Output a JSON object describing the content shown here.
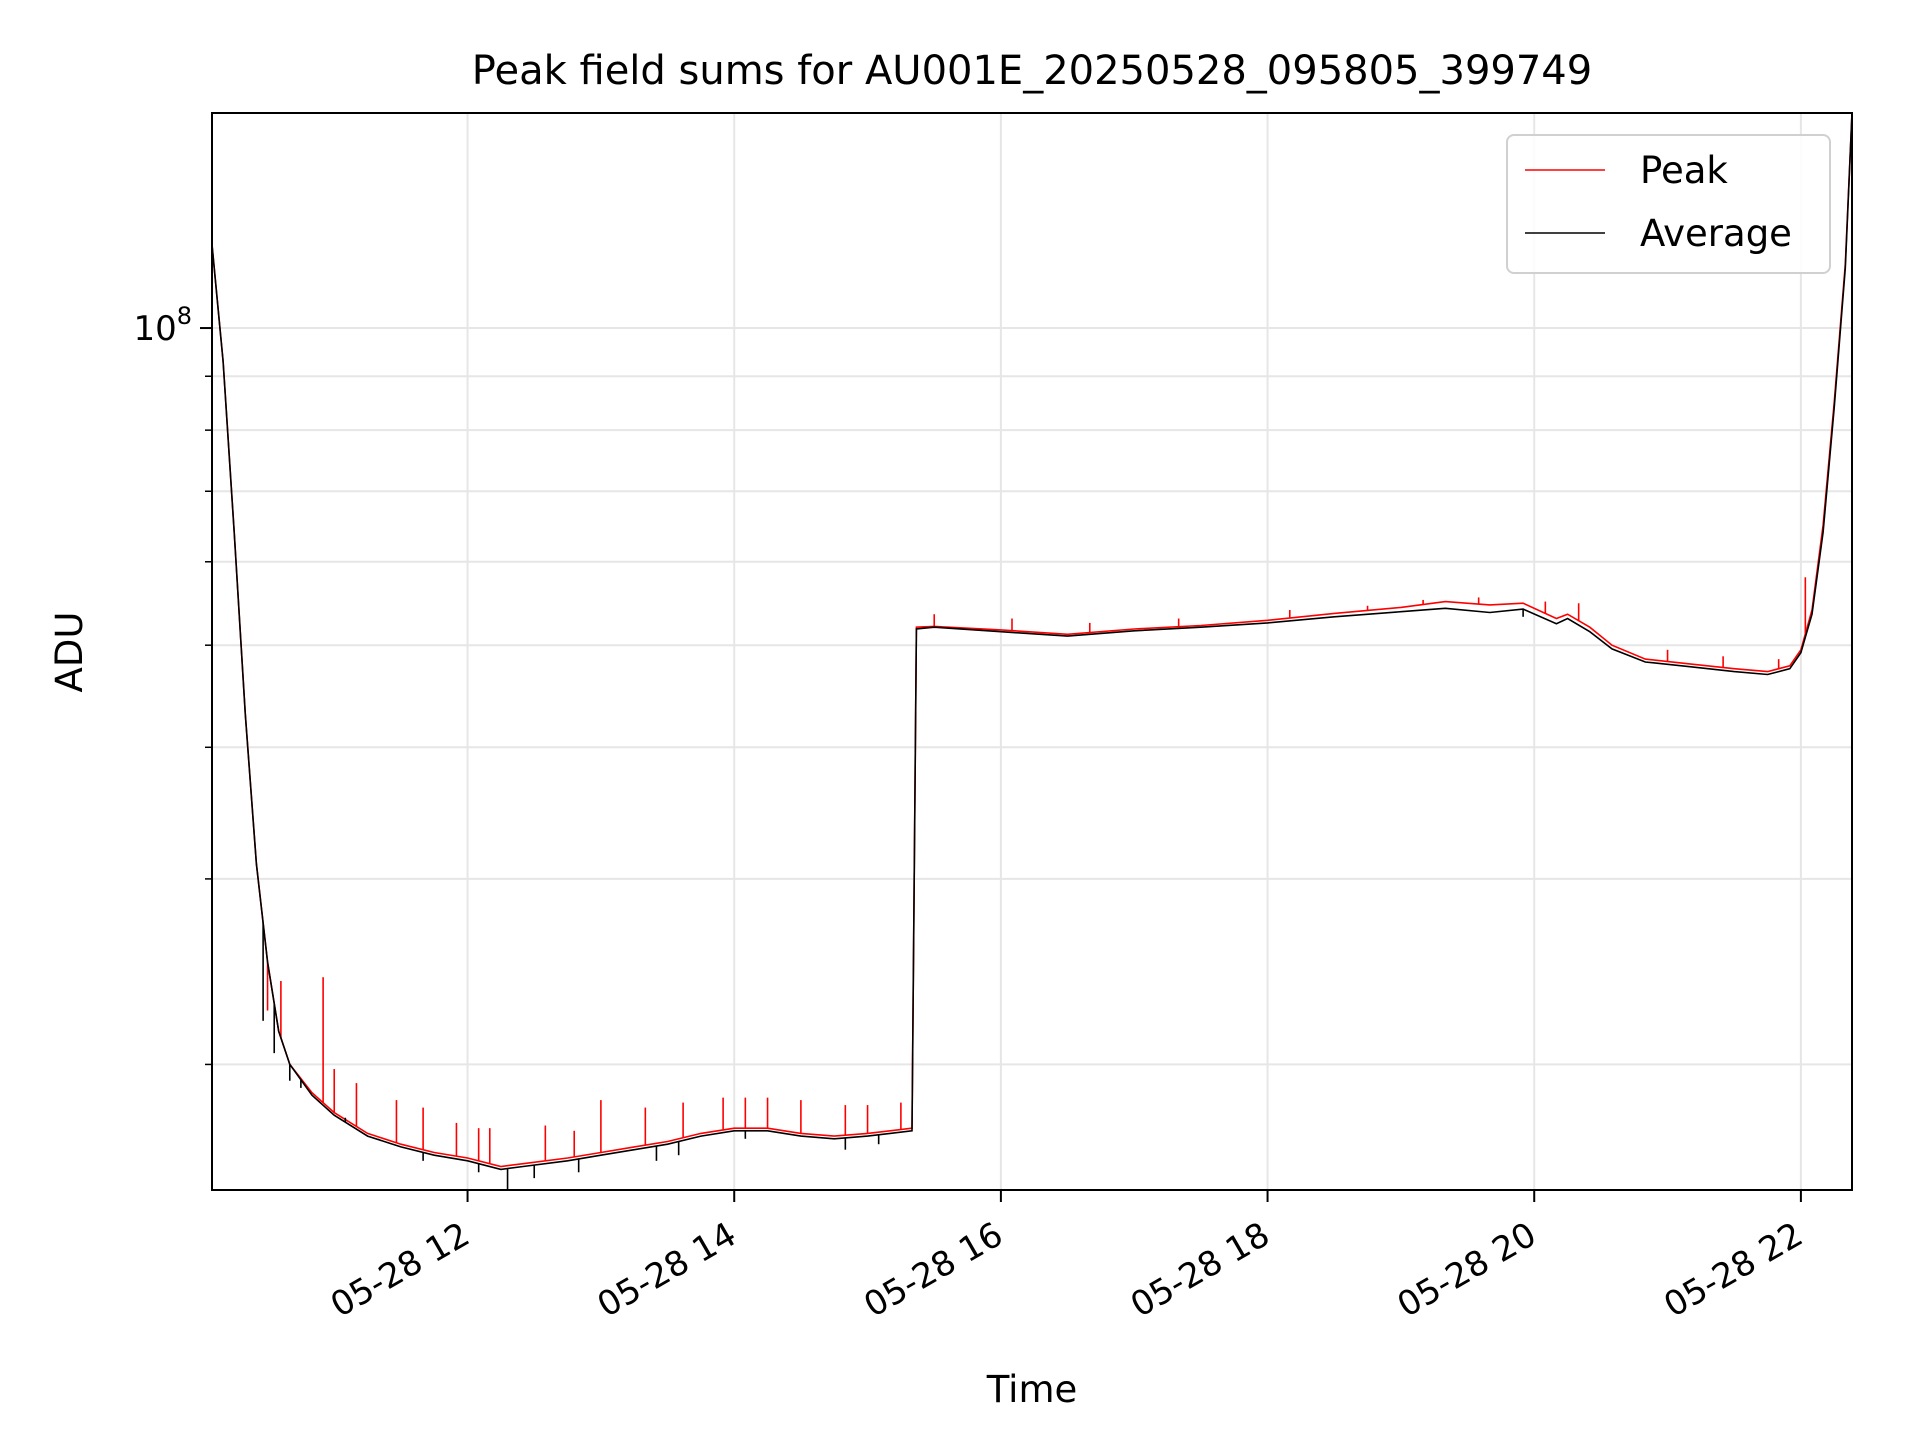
{
  "chart_data": {
    "type": "line",
    "title": "Peak field sums for AU001E_20250528_095805_399749",
    "xlabel": "Time",
    "ylabel": "ADU",
    "y_scale": "log",
    "grid": true,
    "legend_position": "top-right",
    "x_range": [
      "2025-05-28 10:05",
      "2025-05-28 22:23"
    ],
    "y_range": [
      15200000.0,
      160000000.0
    ],
    "x_ticks": [
      {
        "t": "2025-05-28 12:00",
        "label": "05-28 12"
      },
      {
        "t": "2025-05-28 14:00",
        "label": "05-28 14"
      },
      {
        "t": "2025-05-28 16:00",
        "label": "05-28 16"
      },
      {
        "t": "2025-05-28 18:00",
        "label": "05-28 18"
      },
      {
        "t": "2025-05-28 20:00",
        "label": "05-28 20"
      },
      {
        "t": "2025-05-28 22:00",
        "label": "05-28 22"
      }
    ],
    "y_major_ticks": [
      {
        "value": 100000000.0,
        "base": "10",
        "exp": "8"
      }
    ],
    "y_minor_ticks": [
      20000000.0,
      30000000.0,
      40000000.0,
      50000000.0,
      60000000.0,
      70000000.0,
      80000000.0,
      90000000.0
    ],
    "series": [
      {
        "name": "Peak",
        "color": "#ff0000",
        "x": [
          "2025-05-28 10:05",
          "2025-05-28 10:10",
          "2025-05-28 10:15",
          "2025-05-28 10:20",
          "2025-05-28 10:25",
          "2025-05-28 10:30",
          "2025-05-28 10:35",
          "2025-05-28 10:40",
          "2025-05-28 10:50",
          "2025-05-28 11:00",
          "2025-05-28 11:15",
          "2025-05-28 11:30",
          "2025-05-28 11:45",
          "2025-05-28 12:00",
          "2025-05-28 12:15",
          "2025-05-28 12:25",
          "2025-05-28 12:45",
          "2025-05-28 13:00",
          "2025-05-28 13:15",
          "2025-05-28 13:30",
          "2025-05-28 13:45",
          "2025-05-28 14:00",
          "2025-05-28 14:15",
          "2025-05-28 14:30",
          "2025-05-28 14:45",
          "2025-05-28 15:00",
          "2025-05-28 15:20",
          "2025-05-28 15:22",
          "2025-05-28 15:30",
          "2025-05-28 16:00",
          "2025-05-28 16:30",
          "2025-05-28 17:00",
          "2025-05-28 17:30",
          "2025-05-28 18:00",
          "2025-05-28 18:30",
          "2025-05-28 19:00",
          "2025-05-28 19:20",
          "2025-05-28 19:40",
          "2025-05-28 19:55",
          "2025-05-28 20:10",
          "2025-05-28 20:15",
          "2025-05-28 20:25",
          "2025-05-28 20:35",
          "2025-05-28 20:50",
          "2025-05-28 21:10",
          "2025-05-28 21:30",
          "2025-05-28 21:45",
          "2025-05-28 21:55",
          "2025-05-28 22:00",
          "2025-05-28 22:05",
          "2025-05-28 22:10",
          "2025-05-28 22:15",
          "2025-05-28 22:20",
          "2025-05-28 22:23"
        ],
        "values": [
          120000000.0,
          93000000.0,
          64000000.0,
          43000000.0,
          31000000.0,
          25000000.0,
          21500000.0,
          20000000.0,
          18800000.0,
          18000000.0,
          17200000.0,
          16800000.0,
          16500000.0,
          16300000.0,
          16000000.0,
          16100000.0,
          16300000.0,
          16500000.0,
          16700000.0,
          16900000.0,
          17200000.0,
          17400000.0,
          17400000.0,
          17200000.0,
          17100000.0,
          17200000.0,
          17400000.0,
          52000000.0,
          52100000.0,
          51700000.0,
          51200000.0,
          51800000.0,
          52200000.0,
          52800000.0,
          53600000.0,
          54300000.0,
          55000000.0,
          54600000.0,
          54800000.0,
          53000000.0,
          53500000.0,
          52000000.0,
          50000000.0,
          48500000.0,
          48000000.0,
          47500000.0,
          47200000.0,
          47800000.0,
          49500000.0,
          54000000.0,
          65000000.0,
          85000000.0,
          115000000.0,
          160000000.0
        ],
        "spikes": [
          {
            "t": "2025-05-28 10:30",
            "v": 22500000.0
          },
          {
            "t": "2025-05-28 10:36",
            "v": 24000000.0
          },
          {
            "t": "2025-05-28 10:55",
            "v": 24200000.0
          },
          {
            "t": "2025-05-28 11:00",
            "v": 19800000.0
          },
          {
            "t": "2025-05-28 11:10",
            "v": 19200000.0
          },
          {
            "t": "2025-05-28 11:28",
            "v": 18500000.0
          },
          {
            "t": "2025-05-28 11:40",
            "v": 18200000.0
          },
          {
            "t": "2025-05-28 11:55",
            "v": 17600000.0
          },
          {
            "t": "2025-05-28 12:05",
            "v": 17400000.0
          },
          {
            "t": "2025-05-28 12:10",
            "v": 17400000.0
          },
          {
            "t": "2025-05-28 12:35",
            "v": 17500000.0
          },
          {
            "t": "2025-05-28 12:48",
            "v": 17300000.0
          },
          {
            "t": "2025-05-28 13:00",
            "v": 18500000.0
          },
          {
            "t": "2025-05-28 13:20",
            "v": 18200000.0
          },
          {
            "t": "2025-05-28 13:37",
            "v": 18400000.0
          },
          {
            "t": "2025-05-28 13:55",
            "v": 18600000.0
          },
          {
            "t": "2025-05-28 14:05",
            "v": 18600000.0
          },
          {
            "t": "2025-05-28 14:15",
            "v": 18600000.0
          },
          {
            "t": "2025-05-28 14:30",
            "v": 18500000.0
          },
          {
            "t": "2025-05-28 14:50",
            "v": 18300000.0
          },
          {
            "t": "2025-05-28 15:00",
            "v": 18300000.0
          },
          {
            "t": "2025-05-28 15:15",
            "v": 18400000.0
          },
          {
            "t": "2025-05-28 15:30",
            "v": 53500000.0
          },
          {
            "t": "2025-05-28 16:05",
            "v": 53000000.0
          },
          {
            "t": "2025-05-28 16:40",
            "v": 52500000.0
          },
          {
            "t": "2025-05-28 17:20",
            "v": 53000000.0
          },
          {
            "t": "2025-05-28 18:10",
            "v": 54000000.0
          },
          {
            "t": "2025-05-28 18:45",
            "v": 54500000.0
          },
          {
            "t": "2025-05-28 19:10",
            "v": 55200000.0
          },
          {
            "t": "2025-05-28 19:35",
            "v": 55500000.0
          },
          {
            "t": "2025-05-28 20:05",
            "v": 55000000.0
          },
          {
            "t": "2025-05-28 20:20",
            "v": 54800000.0
          },
          {
            "t": "2025-05-28 21:00",
            "v": 49500000.0
          },
          {
            "t": "2025-05-28 21:25",
            "v": 48800000.0
          },
          {
            "t": "2025-05-28 21:50",
            "v": 48500000.0
          },
          {
            "t": "2025-05-28 22:02",
            "v": 58000000.0
          }
        ]
      },
      {
        "name": "Average",
        "color": "#000000",
        "x": [
          "2025-05-28 10:05",
          "2025-05-28 10:10",
          "2025-05-28 10:15",
          "2025-05-28 10:20",
          "2025-05-28 10:25",
          "2025-05-28 10:30",
          "2025-05-28 10:35",
          "2025-05-28 10:40",
          "2025-05-28 10:50",
          "2025-05-28 11:00",
          "2025-05-28 11:15",
          "2025-05-28 11:30",
          "2025-05-28 11:45",
          "2025-05-28 12:00",
          "2025-05-28 12:15",
          "2025-05-28 12:25",
          "2025-05-28 12:45",
          "2025-05-28 13:00",
          "2025-05-28 13:15",
          "2025-05-28 13:30",
          "2025-05-28 13:45",
          "2025-05-28 14:00",
          "2025-05-28 14:15",
          "2025-05-28 14:30",
          "2025-05-28 14:45",
          "2025-05-28 15:00",
          "2025-05-28 15:20",
          "2025-05-28 15:22",
          "2025-05-28 15:30",
          "2025-05-28 16:00",
          "2025-05-28 16:30",
          "2025-05-28 17:00",
          "2025-05-28 17:30",
          "2025-05-28 18:00",
          "2025-05-28 18:30",
          "2025-05-28 19:00",
          "2025-05-28 19:20",
          "2025-05-28 19:40",
          "2025-05-28 19:55",
          "2025-05-28 20:10",
          "2025-05-28 20:15",
          "2025-05-28 20:25",
          "2025-05-28 20:35",
          "2025-05-28 20:50",
          "2025-05-28 21:10",
          "2025-05-28 21:30",
          "2025-05-28 21:45",
          "2025-05-28 21:55",
          "2025-05-28 22:00",
          "2025-05-28 22:05",
          "2025-05-28 22:10",
          "2025-05-28 22:15",
          "2025-05-28 22:20",
          "2025-05-28 22:23"
        ],
        "values": [
          120000000.0,
          93000000.0,
          64000000.0,
          43000000.0,
          31000000.0,
          25000000.0,
          21500000.0,
          20000000.0,
          18700000.0,
          17900000.0,
          17100000.0,
          16700000.0,
          16400000.0,
          16200000.0,
          15900000.0,
          16000000.0,
          16200000.0,
          16400000.0,
          16600000.0,
          16800000.0,
          17100000.0,
          17300000.0,
          17300000.0,
          17100000.0,
          17000000.0,
          17100000.0,
          17300000.0,
          51800000.0,
          52000000.0,
          51500000.0,
          51000000.0,
          51600000.0,
          52000000.0,
          52500000.0,
          53200000.0,
          53800000.0,
          54200000.0,
          53700000.0,
          54100000.0,
          52400000.0,
          53000000.0,
          51500000.0,
          49600000.0,
          48200000.0,
          47700000.0,
          47200000.0,
          46900000.0,
          47500000.0,
          49200000.0,
          53500000.0,
          64000000.0,
          84000000.0,
          114000000.0,
          160000000.0
        ],
        "dips": [
          {
            "t": "2025-05-28 10:28",
            "v": 22000000.0
          },
          {
            "t": "2025-05-28 10:33",
            "v": 20500000.0
          },
          {
            "t": "2025-05-28 10:40",
            "v": 19300000.0
          },
          {
            "t": "2025-05-28 10:45",
            "v": 19000000.0
          },
          {
            "t": "2025-05-28 11:05",
            "v": 17800000.0
          },
          {
            "t": "2025-05-28 11:20",
            "v": 17000000.0
          },
          {
            "t": "2025-05-28 11:40",
            "v": 16200000.0
          },
          {
            "t": "2025-05-28 12:05",
            "v": 15800000.0
          },
          {
            "t": "2025-05-28 12:18",
            "v": 15200000.0
          },
          {
            "t": "2025-05-28 12:30",
            "v": 15600000.0
          },
          {
            "t": "2025-05-28 12:50",
            "v": 15800000.0
          },
          {
            "t": "2025-05-28 13:25",
            "v": 16200000.0
          },
          {
            "t": "2025-05-28 13:35",
            "v": 16400000.0
          },
          {
            "t": "2025-05-28 14:05",
            "v": 17000000.0
          },
          {
            "t": "2025-05-28 14:50",
            "v": 16600000.0
          },
          {
            "t": "2025-05-28 15:05",
            "v": 16800000.0
          },
          {
            "t": "2025-05-28 19:55",
            "v": 53200000.0
          }
        ]
      }
    ]
  }
}
